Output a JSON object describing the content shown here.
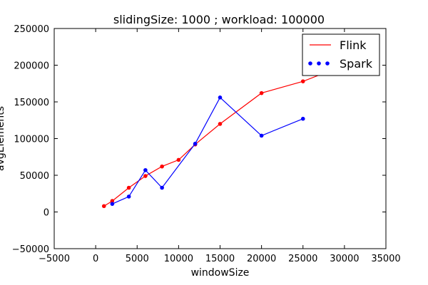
{
  "chart_data": {
    "type": "line",
    "title": "slidingSize: 1000 ; workload: 100000",
    "xlabel": "windowSize",
    "ylabel": "avgElements",
    "xlim": [
      -5000,
      35000
    ],
    "ylim": [
      -50000,
      250000
    ],
    "xticks": [
      -5000,
      0,
      5000,
      10000,
      15000,
      20000,
      25000,
      30000,
      35000
    ],
    "yticks": [
      -50000,
      0,
      50000,
      100000,
      150000,
      200000,
      250000
    ],
    "grid": false,
    "legend_position": "top-right",
    "series": [
      {
        "name": "Flink",
        "color": "#ff0000",
        "marker": "line",
        "x": [
          1000,
          2000,
          4000,
          6000,
          8000,
          10000,
          12000,
          15000,
          20000,
          25000,
          30000
        ],
        "y": [
          8000,
          15000,
          33000,
          49000,
          62000,
          71000,
          92000,
          120000,
          162000,
          178000,
          200000
        ]
      },
      {
        "name": "Spark",
        "color": "#0000ff",
        "marker": "dots",
        "x": [
          2000,
          4000,
          6000,
          8000,
          12000,
          15000,
          20000,
          25000
        ],
        "y": [
          11000,
          21000,
          57000,
          33000,
          93000,
          156000,
          104000,
          127000
        ]
      }
    ]
  }
}
